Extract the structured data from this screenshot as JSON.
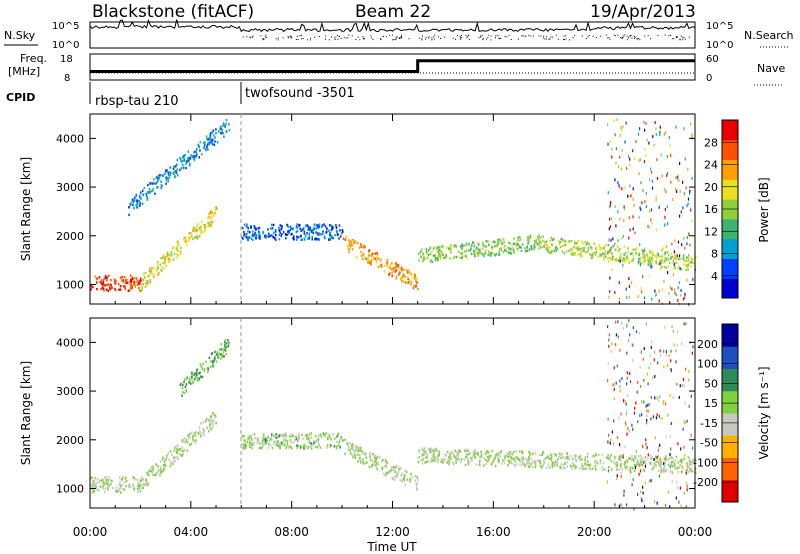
{
  "header": {
    "station": "Blackstone (fitACF)",
    "beam": "Beam 22",
    "date": "19/Apr/2013"
  },
  "top_panels": {
    "nsky_label": "N.Sky",
    "nsearch_label": "N.Search",
    "freq_label_1": "Freq.",
    "freq_label_2": "[MHz]",
    "nave_label": "Nave",
    "cpid_label": "CPID",
    "left_ticks_noise": [
      "10^5",
      "10^0"
    ],
    "right_ticks_noise": [
      "10^5",
      "10^0"
    ],
    "left_ticks_freq": [
      "18",
      "8"
    ],
    "right_ticks_nave": [
      "60",
      "0"
    ],
    "cpid_segments": [
      {
        "name": "rbsp-tau 210",
        "start_hour": 0
      },
      {
        "name": "twofsound -3501",
        "start_hour": 6
      }
    ],
    "freq_steps": [
      {
        "from_hour": 0,
        "to_hour": 13,
        "mhz": 10.5
      },
      {
        "from_hour": 13,
        "to_hour": 24,
        "mhz": 16.5
      }
    ]
  },
  "chart_data": [
    {
      "type": "heatmap",
      "name": "power",
      "xlabel": "",
      "ylabel": "Slant Range [km]",
      "x_range_hours": [
        0,
        24
      ],
      "ylim": [
        600,
        4500
      ],
      "y_ticks": [
        1000,
        2000,
        3000,
        4000
      ],
      "colorbar": {
        "label": "Power [dB]",
        "tick_labels": [
          "28",
          "24",
          "20",
          "16",
          "12",
          "8",
          "4"
        ],
        "range": [
          0,
          30
        ],
        "colors": [
          "#0000d0",
          "#0040ff",
          "#00a0d0",
          "#3cb371",
          "#90d040",
          "#e8e020",
          "#ffa000",
          "#ff5000",
          "#e80000"
        ]
      },
      "features": [
        {
          "from_hour": 0.0,
          "to_hour": 2.0,
          "range_km_start": 1050,
          "range_km_end": 1050,
          "power_db": 26
        },
        {
          "from_hour": 2.0,
          "to_hour": 5.0,
          "range_km_start": 1050,
          "range_km_end": 2500,
          "power_db": 18
        },
        {
          "from_hour": 1.5,
          "to_hour": 5.5,
          "range_km_start": 2600,
          "range_km_end": 4300,
          "power_db": 8
        },
        {
          "from_hour": 6.0,
          "to_hour": 10.0,
          "range_km_start": 2100,
          "range_km_end": 2100,
          "power_db": 6
        },
        {
          "from_hour": 10.0,
          "to_hour": 13.0,
          "range_km_start": 1900,
          "range_km_end": 1050,
          "power_db": 22
        },
        {
          "from_hour": 13.0,
          "to_hour": 18.0,
          "range_km_start": 1600,
          "range_km_end": 1900,
          "power_db": 14
        },
        {
          "from_hour": 18.0,
          "to_hour": 24.0,
          "range_km_start": 1850,
          "range_km_end": 1450,
          "power_db": 16
        }
      ]
    },
    {
      "type": "heatmap",
      "name": "velocity",
      "xlabel": "Time UT",
      "ylabel": "Slant Range [km]",
      "x_range_hours": [
        0,
        24
      ],
      "x_tick_labels": [
        "00:00",
        "04:00",
        "08:00",
        "12:00",
        "16:00",
        "20:00",
        "00:00"
      ],
      "ylim": [
        600,
        4500
      ],
      "y_ticks": [
        1000,
        2000,
        3000,
        4000
      ],
      "colorbar": {
        "label": "Velocity [m s⁻¹]",
        "tick_labels": [
          "200",
          "100",
          "50",
          "15",
          "-15",
          "-50",
          "-100",
          "-200"
        ],
        "range": [
          -250,
          250
        ],
        "colors": [
          "#e00000",
          "#ff6000",
          "#ffb000",
          "#c8c8c0",
          "#80d040",
          "#2e8b57",
          "#2050c0",
          "#0000a0"
        ]
      },
      "features": [
        {
          "from_hour": 0.0,
          "to_hour": 2.0,
          "range_km_start": 1100,
          "range_km_end": 1100,
          "velocity_ms": 0
        },
        {
          "from_hour": 2.0,
          "to_hour": 5.0,
          "range_km_start": 1100,
          "range_km_end": 2500,
          "velocity_ms": 0
        },
        {
          "from_hour": 3.5,
          "to_hour": 5.5,
          "range_km_start": 3000,
          "range_km_end": 4000,
          "velocity_ms": 60
        },
        {
          "from_hour": 6.0,
          "to_hour": 10.0,
          "range_km_start": 2000,
          "range_km_end": 2000,
          "velocity_ms": 20
        },
        {
          "from_hour": 10.0,
          "to_hour": 13.0,
          "range_km_start": 1900,
          "range_km_end": 1100,
          "velocity_ms": 0
        },
        {
          "from_hour": 13.0,
          "to_hour": 24.0,
          "range_km_start": 1700,
          "range_km_end": 1500,
          "velocity_ms": 0
        }
      ]
    }
  ]
}
